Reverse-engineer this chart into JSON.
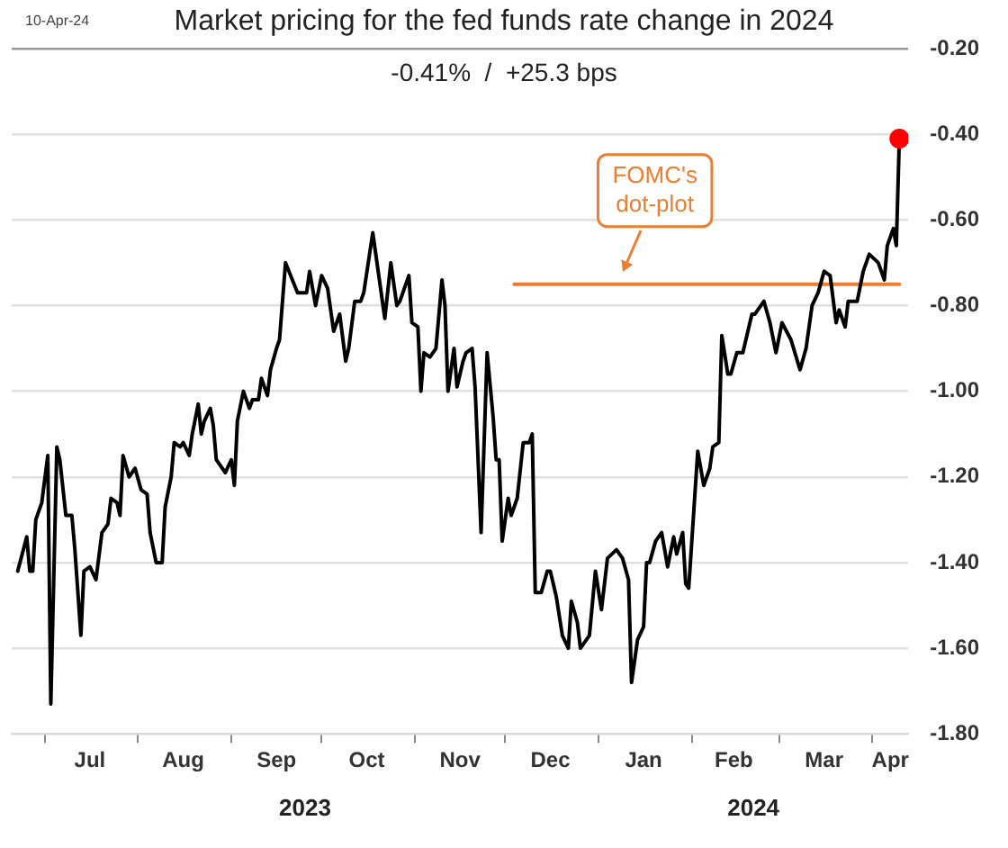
{
  "chart_data": {
    "type": "line",
    "title": "Market pricing for the fed funds rate change in 2024",
    "subtitle": "-0.41%  /  +25.3 bps",
    "annotations": [
      "10-Apr-24",
      "2023",
      "2024",
      {
        "text": "FOMC's dot-plot",
        "x": "2024-01-09",
        "y": -0.75
      }
    ],
    "xlim": [
      "2023-06-20",
      "2024-04-13"
    ],
    "xticks": [
      {
        "value": "2023-07-01",
        "label": null
      },
      {
        "value": "2023-07-16",
        "label": "Jul"
      },
      {
        "value": "2023-08-01",
        "label": null
      },
      {
        "value": "2023-08-16",
        "label": "Aug"
      },
      {
        "value": "2023-09-01",
        "label": null
      },
      {
        "value": "2023-09-16",
        "label": "Sep"
      },
      {
        "value": "2023-10-01",
        "label": null
      },
      {
        "value": "2023-10-16",
        "label": "Oct"
      },
      {
        "value": "2023-11-01",
        "label": null
      },
      {
        "value": "2023-11-16",
        "label": "Nov"
      },
      {
        "value": "2023-12-01",
        "label": null
      },
      {
        "value": "2023-12-16",
        "label": "Dec"
      },
      {
        "value": "2024-01-01",
        "label": null
      },
      {
        "value": "2024-01-16",
        "label": "Jan"
      },
      {
        "value": "2024-02-01",
        "label": null
      },
      {
        "value": "2024-02-15",
        "label": "Feb"
      },
      {
        "value": "2024-03-01",
        "label": null
      },
      {
        "value": "2024-03-16",
        "label": "Mar"
      },
      {
        "value": "2024-04-01",
        "label": null
      },
      {
        "value": "2024-04-07",
        "label": "Apr"
      }
    ],
    "ylim": [
      -1.8,
      -0.2
    ],
    "yticks": [
      {
        "value": -1.8,
        "label": "-1.80"
      },
      {
        "value": -1.6,
        "label": "-1.60"
      },
      {
        "value": -1.4,
        "label": "-1.40"
      },
      {
        "value": -1.2,
        "label": "-1.20"
      },
      {
        "value": -1.0,
        "label": "-1.00"
      },
      {
        "value": -0.8,
        "label": "-0.80"
      },
      {
        "value": -0.6,
        "label": "-0.60"
      },
      {
        "value": -0.4,
        "label": "-0.40"
      },
      {
        "value": -0.2,
        "label": "-0.20"
      }
    ],
    "grid": "y",
    "legend": false,
    "marker": "none",
    "line_style": "solid",
    "series": [
      {
        "color": "#000000",
        "x": [
          "2023-06-22",
          "2023-06-25",
          "2023-06-26",
          "2023-06-27",
          "2023-06-28",
          "2023-06-30",
          "2023-07-02",
          "2023-07-03",
          "2023-07-05",
          "2023-07-06",
          "2023-07-08",
          "2023-07-10",
          "2023-07-11",
          "2023-07-13",
          "2023-07-14",
          "2023-07-16",
          "2023-07-18",
          "2023-07-20",
          "2023-07-22",
          "2023-07-23",
          "2023-07-25",
          "2023-07-26",
          "2023-07-27",
          "2023-07-29",
          "2023-07-31",
          "2023-08-02",
          "2023-08-04",
          "2023-08-05",
          "2023-08-07",
          "2023-08-09",
          "2023-08-10",
          "2023-08-12",
          "2023-08-13",
          "2023-08-15",
          "2023-08-16",
          "2023-08-18",
          "2023-08-19",
          "2023-08-21",
          "2023-08-22",
          "2023-08-23",
          "2023-08-25",
          "2023-08-26",
          "2023-08-27",
          "2023-08-30",
          "2023-09-01",
          "2023-09-02",
          "2023-09-03",
          "2023-09-05",
          "2023-09-07",
          "2023-09-08",
          "2023-09-10",
          "2023-09-11",
          "2023-09-13",
          "2023-09-14",
          "2023-09-16",
          "2023-09-17",
          "2023-09-19",
          "2023-09-23",
          "2023-09-26",
          "2023-09-27",
          "2023-09-29",
          "2023-10-01",
          "2023-10-03",
          "2023-10-05",
          "2023-10-07",
          "2023-10-09",
          "2023-10-10",
          "2023-10-12",
          "2023-10-14",
          "2023-10-15",
          "2023-10-18",
          "2023-10-19",
          "2023-10-22",
          "2023-10-24",
          "2023-10-26",
          "2023-10-27",
          "2023-10-30",
          "2023-10-31",
          "2023-11-02",
          "2023-11-03",
          "2023-11-04",
          "2023-11-06",
          "2023-11-08",
          "2023-11-10",
          "2023-11-11",
          "2023-11-12",
          "2023-11-14",
          "2023-11-15",
          "2023-11-17",
          "2023-11-18",
          "2023-11-20",
          "2023-11-21",
          "2023-11-23",
          "2023-11-25",
          "2023-11-27",
          "2023-11-28",
          "2023-11-29",
          "2023-11-30",
          "2023-12-02",
          "2023-12-03",
          "2023-12-05",
          "2023-12-07",
          "2023-12-09",
          "2023-12-10",
          "2023-12-11",
          "2023-12-13",
          "2023-12-15",
          "2023-12-16",
          "2023-12-18",
          "2023-12-20",
          "2023-12-22",
          "2023-12-23",
          "2023-12-25",
          "2023-12-26",
          "2023-12-29",
          "2023-12-31",
          "2024-01-02",
          "2024-01-04",
          "2024-01-07",
          "2024-01-09",
          "2024-01-11",
          "2024-01-12",
          "2024-01-14",
          "2024-01-16",
          "2024-01-17",
          "2024-01-18",
          "2024-01-20",
          "2024-01-22",
          "2024-01-24",
          "2024-01-26",
          "2024-01-27",
          "2024-01-29",
          "2024-01-30",
          "2024-01-31",
          "2024-02-03",
          "2024-02-05",
          "2024-02-07",
          "2024-02-08",
          "2024-02-10",
          "2024-02-11",
          "2024-02-13",
          "2024-02-14",
          "2024-02-16",
          "2024-02-18",
          "2024-02-21",
          "2024-02-22",
          "2024-02-25",
          "2024-02-27",
          "2024-02-29",
          "2024-03-02",
          "2024-03-05",
          "2024-03-08",
          "2024-03-10",
          "2024-03-12",
          "2024-03-14",
          "2024-03-16",
          "2024-03-18",
          "2024-03-20",
          "2024-03-21",
          "2024-03-23",
          "2024-03-24",
          "2024-03-27",
          "2024-03-29",
          "2024-03-31",
          "2024-04-03",
          "2024-04-05",
          "2024-04-06",
          "2024-04-08",
          "2024-04-09",
          "2024-04-10"
        ],
        "values": [
          -1.42,
          -1.34,
          -1.42,
          -1.42,
          -1.3,
          -1.26,
          -1.15,
          -1.73,
          -1.13,
          -1.16,
          -1.29,
          -1.29,
          -1.37,
          -1.57,
          -1.42,
          -1.41,
          -1.44,
          -1.33,
          -1.31,
          -1.25,
          -1.26,
          -1.29,
          -1.15,
          -1.2,
          -1.18,
          -1.23,
          -1.24,
          -1.33,
          -1.4,
          -1.4,
          -1.27,
          -1.2,
          -1.12,
          -1.13,
          -1.12,
          -1.15,
          -1.1,
          -1.03,
          -1.1,
          -1.07,
          -1.04,
          -1.08,
          -1.16,
          -1.19,
          -1.16,
          -1.22,
          -1.07,
          -1.0,
          -1.04,
          -1.02,
          -1.02,
          -0.97,
          -1.01,
          -0.95,
          -0.9,
          -0.88,
          -0.7,
          -0.77,
          -0.77,
          -0.72,
          -0.8,
          -0.73,
          -0.76,
          -0.86,
          -0.82,
          -0.93,
          -0.9,
          -0.79,
          -0.79,
          -0.77,
          -0.63,
          -0.68,
          -0.83,
          -0.7,
          -0.8,
          -0.79,
          -0.73,
          -0.84,
          -0.85,
          -1.0,
          -0.91,
          -0.92,
          -0.9,
          -0.74,
          -0.8,
          -1.0,
          -0.9,
          -0.99,
          -0.93,
          -0.91,
          -0.9,
          -0.99,
          -1.33,
          -0.91,
          -1.06,
          -1.16,
          -1.16,
          -1.35,
          -1.25,
          -1.29,
          -1.25,
          -1.12,
          -1.12,
          -1.1,
          -1.47,
          -1.47,
          -1.42,
          -1.42,
          -1.48,
          -1.57,
          -1.6,
          -1.49,
          -1.54,
          -1.6,
          -1.57,
          -1.42,
          -1.51,
          -1.39,
          -1.37,
          -1.39,
          -1.44,
          -1.68,
          -1.58,
          -1.55,
          -1.4,
          -1.4,
          -1.35,
          -1.33,
          -1.41,
          -1.34,
          -1.38,
          -1.33,
          -1.45,
          -1.46,
          -1.14,
          -1.22,
          -1.18,
          -1.13,
          -1.12,
          -0.87,
          -0.96,
          -0.96,
          -0.91,
          -0.91,
          -0.82,
          -0.82,
          -0.79,
          -0.84,
          -0.91,
          -0.84,
          -0.88,
          -0.95,
          -0.9,
          -0.8,
          -0.77,
          -0.72,
          -0.73,
          -0.84,
          -0.81,
          -0.85,
          -0.79,
          -0.79,
          -0.72,
          -0.68,
          -0.7,
          -0.74,
          -0.66,
          -0.62,
          -0.66,
          -0.41
        ]
      },
      {
        "type": "line",
        "color": "#ed7d31",
        "x": [
          "2023-12-04",
          "2024-04-10"
        ],
        "values": [
          -0.75,
          -0.75
        ]
      },
      {
        "type": "scatter",
        "color": "#ff0000",
        "marker": "circle",
        "x": [
          "2024-04-10"
        ],
        "values": [
          -0.41
        ]
      }
    ]
  }
}
